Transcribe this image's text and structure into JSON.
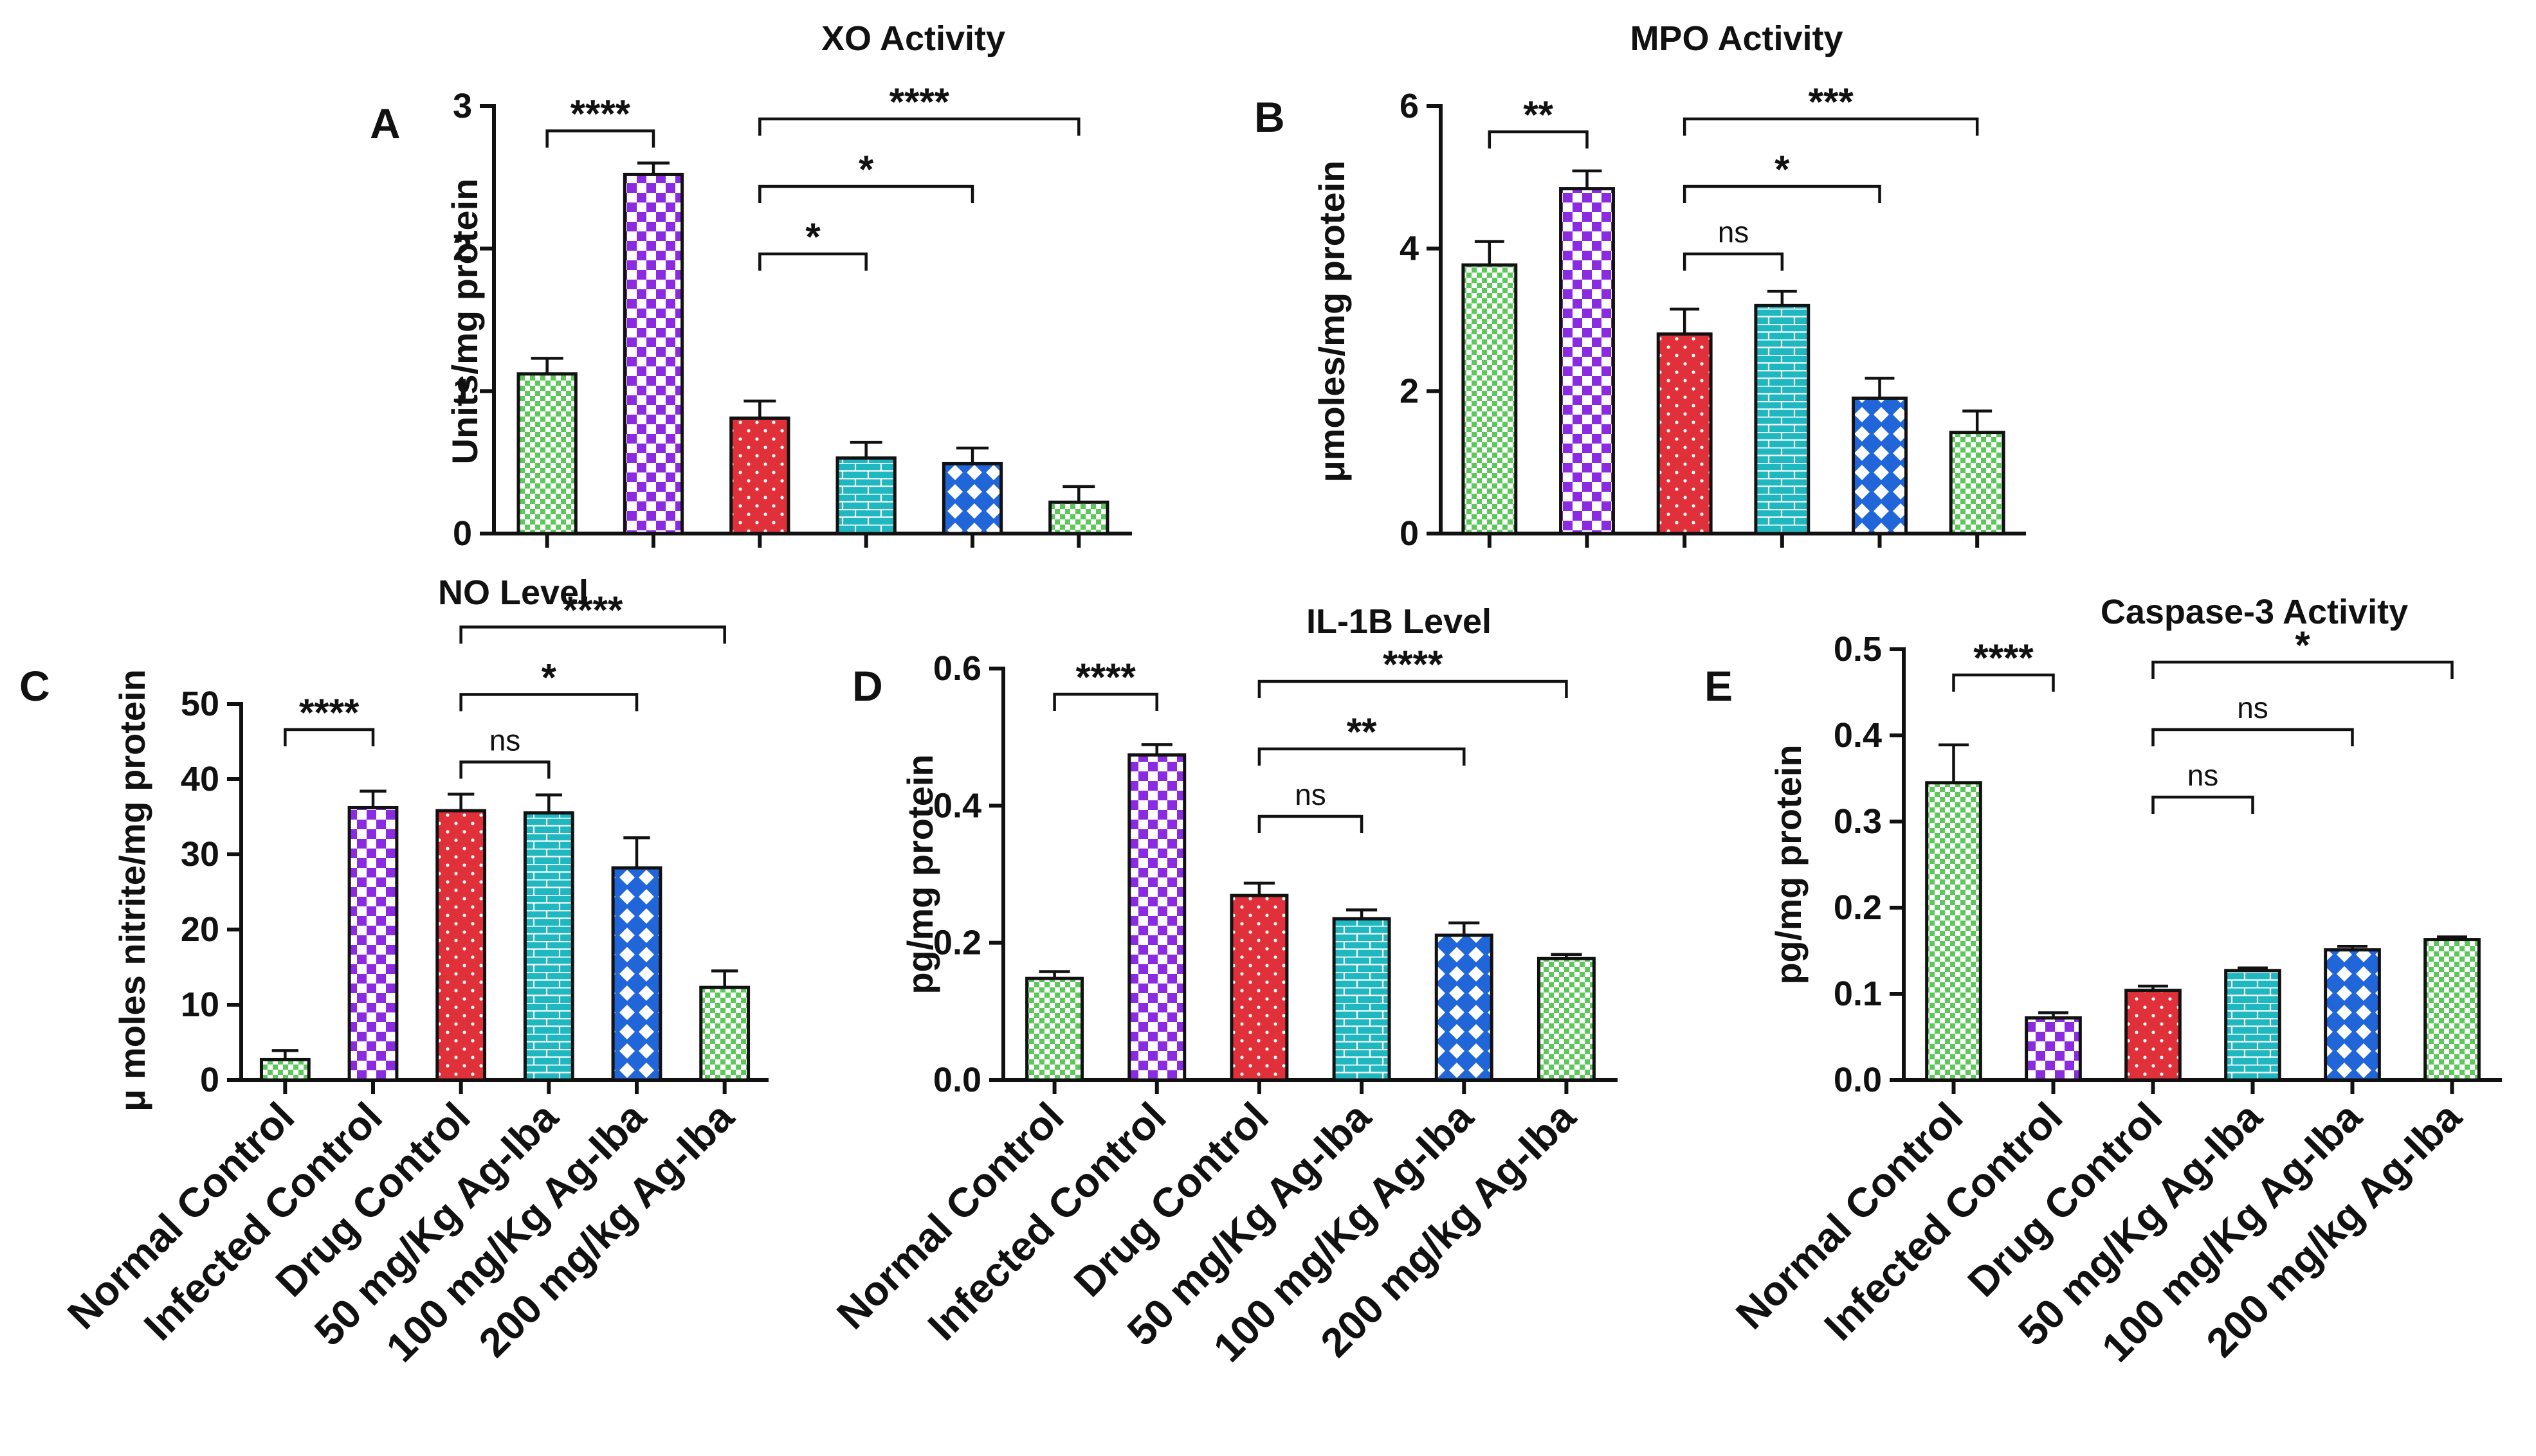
{
  "panels": [
    {
      "id": "A",
      "title": "XO Activity",
      "ylabel": "Units/mg protein",
      "ylim": [
        0,
        3
      ],
      "yticks": [
        "0",
        "1",
        "2",
        "3"
      ],
      "tickvals": [
        0,
        1,
        2,
        3
      ],
      "show_categories": false
    },
    {
      "id": "B",
      "title": "MPO Activity",
      "ylabel": "μmoles/mg protein",
      "ylim": [
        0,
        6
      ],
      "yticks": [
        "0",
        "2",
        "4",
        "6"
      ],
      "tickvals": [
        0,
        2,
        4,
        6
      ],
      "show_categories": false
    },
    {
      "id": "C",
      "title": "NO Level",
      "ylabel": "μ moles nitrite/mg protein",
      "ylim": [
        0,
        50
      ],
      "yticks": [
        "0",
        "10",
        "20",
        "30",
        "40",
        "50"
      ],
      "tickvals": [
        0,
        10,
        20,
        30,
        40,
        50
      ],
      "show_categories": true
    },
    {
      "id": "D",
      "title": "IL-1B Level",
      "ylabel": "pg/mg protein",
      "ylim": [
        0,
        0.6
      ],
      "yticks": [
        "0.0",
        "0.2",
        "0.4",
        "0.6"
      ],
      "tickvals": [
        0,
        0.2,
        0.4,
        0.6
      ],
      "show_categories": true
    },
    {
      "id": "E",
      "title": "Caspase-3 Activity",
      "ylabel": "pg/mg protein",
      "ylim": [
        0,
        0.5
      ],
      "yticks": [
        "0.0",
        "0.1",
        "0.2",
        "0.3",
        "0.4",
        "0.5"
      ],
      "tickvals": [
        0,
        0.1,
        0.2,
        0.3,
        0.4,
        0.5
      ],
      "show_categories": true
    }
  ],
  "group_styles": [
    {
      "pattern": "checks-small",
      "color": "#5cc85a"
    },
    {
      "pattern": "checks-large",
      "color": "#8a2be2"
    },
    {
      "pattern": "dots",
      "color": "#e0303a"
    },
    {
      "pattern": "bricks",
      "color": "#1fb7c0"
    },
    {
      "pattern": "diamonds",
      "color": "#2166d9"
    },
    {
      "pattern": "checks-small",
      "color": "#5cc85a"
    }
  ],
  "chart_data": [
    {
      "type": "bar",
      "title": "XO Activity",
      "ylabel": "Units/mg protein",
      "ylim": [
        0,
        3
      ],
      "categories": [
        "Normal Control",
        "Infected Control",
        "Drug Control",
        "50 mg/Kg Ag-Iba",
        "100 mg/Kg Ag-Iba",
        "200 mg/kg Ag-Iba"
      ],
      "values": [
        1.12,
        2.52,
        0.81,
        0.53,
        0.49,
        0.22
      ],
      "errors": [
        0.11,
        0.08,
        0.12,
        0.11,
        0.11,
        0.11
      ],
      "significance": [
        {
          "from": 0,
          "to": 1,
          "label": "****"
        },
        {
          "from": 2,
          "to": 3,
          "label": "*"
        },
        {
          "from": 2,
          "to": 4,
          "label": "*"
        },
        {
          "from": 2,
          "to": 5,
          "label": "****"
        }
      ]
    },
    {
      "type": "bar",
      "title": "MPO Activity",
      "ylabel": "μmoles/mg protein",
      "ylim": [
        0,
        6
      ],
      "categories": [
        "Normal Control",
        "Infected Control",
        "Drug Control",
        "50 mg/Kg Ag-Iba",
        "100 mg/Kg Ag-Iba",
        "200 mg/kg Ag-Iba"
      ],
      "values": [
        3.77,
        4.84,
        2.8,
        3.2,
        1.9,
        1.42
      ],
      "errors": [
        0.33,
        0.25,
        0.35,
        0.2,
        0.28,
        0.3
      ],
      "significance": [
        {
          "from": 0,
          "to": 1,
          "label": "**"
        },
        {
          "from": 2,
          "to": 3,
          "label": "ns"
        },
        {
          "from": 2,
          "to": 4,
          "label": "*"
        },
        {
          "from": 2,
          "to": 5,
          "label": "***"
        }
      ]
    },
    {
      "type": "bar",
      "title": "NO Level",
      "ylabel": "μ moles nitrite/mg protein",
      "ylim": [
        0,
        50
      ],
      "categories": [
        "Normal Control",
        "Infected Control",
        "Drug Control",
        "50 mg/Kg Ag-Iba",
        "100 mg/Kg Ag-Iba",
        "200 mg/kg Ag-Iba"
      ],
      "values": [
        2.7,
        36.2,
        35.8,
        35.5,
        28.2,
        12.3
      ],
      "errors": [
        1.2,
        2.2,
        2.2,
        2.4,
        4.0,
        2.2
      ],
      "significance": [
        {
          "from": 0,
          "to": 1,
          "label": "****"
        },
        {
          "from": 2,
          "to": 3,
          "label": "ns"
        },
        {
          "from": 2,
          "to": 4,
          "label": "*"
        },
        {
          "from": 2,
          "to": 5,
          "label": "****"
        }
      ]
    },
    {
      "type": "bar",
      "title": "IL-1B Level",
      "ylabel": "pg/mg protein",
      "ylim": [
        0,
        0.6
      ],
      "categories": [
        "Normal Control",
        "Infected Control",
        "Drug Control",
        "50 mg/Kg Ag-Iba",
        "100 mg/Kg Ag-Iba",
        "200 mg/kg Ag-Iba"
      ],
      "values": [
        0.148,
        0.474,
        0.269,
        0.235,
        0.211,
        0.177
      ],
      "errors": [
        0.01,
        0.015,
        0.018,
        0.013,
        0.018,
        0.006
      ],
      "significance": [
        {
          "from": 0,
          "to": 1,
          "label": "****"
        },
        {
          "from": 2,
          "to": 3,
          "label": "ns"
        },
        {
          "from": 2,
          "to": 4,
          "label": "**"
        },
        {
          "from": 2,
          "to": 5,
          "label": "****"
        }
      ]
    },
    {
      "type": "bar",
      "title": "Caspase-3 Activity",
      "ylabel": "pg/mg protein",
      "ylim": [
        0,
        0.5
      ],
      "categories": [
        "Normal Control",
        "Infected Control",
        "Drug Control",
        "50 mg/Kg Ag-Iba",
        "100 mg/Kg Ag-Iba",
        "200 mg/kg Ag-Iba"
      ],
      "values": [
        0.345,
        0.072,
        0.104,
        0.127,
        0.151,
        0.163
      ],
      "errors": [
        0.044,
        0.006,
        0.005,
        0.003,
        0.004,
        0.003
      ],
      "significance": [
        {
          "from": 0,
          "to": 1,
          "label": "****"
        },
        {
          "from": 2,
          "to": 3,
          "label": "ns"
        },
        {
          "from": 2,
          "to": 4,
          "label": "ns"
        },
        {
          "from": 2,
          "to": 5,
          "label": "*"
        }
      ]
    }
  ]
}
